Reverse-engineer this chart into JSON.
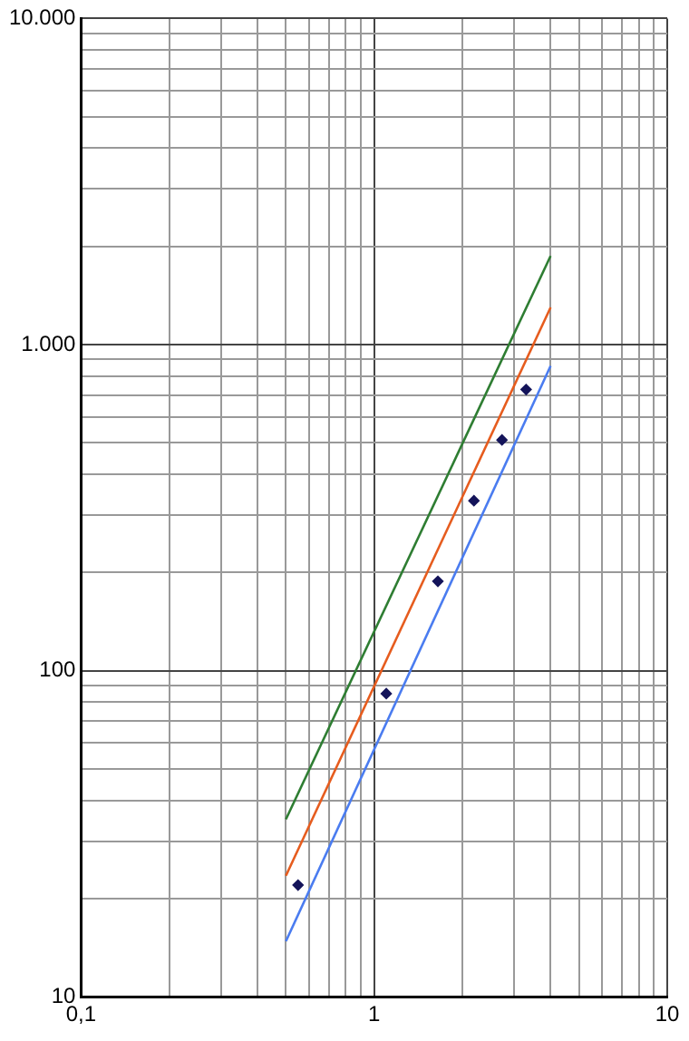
{
  "chart_data": {
    "type": "scatter",
    "log": "xy",
    "grid": true,
    "legend": false,
    "xlim": [
      0.1,
      10
    ],
    "ylim": [
      10,
      10000
    ],
    "xticks": [
      {
        "value": 0.1,
        "label": "0,1"
      },
      {
        "value": 0.2,
        "label": null
      },
      {
        "value": 0.3,
        "label": null
      },
      {
        "value": 0.4,
        "label": null
      },
      {
        "value": 0.5,
        "label": null
      },
      {
        "value": 0.6,
        "label": null
      },
      {
        "value": 0.7,
        "label": null
      },
      {
        "value": 0.8,
        "label": null
      },
      {
        "value": 0.9,
        "label": null
      },
      1,
      {
        "value": 2,
        "label": null
      },
      {
        "value": 3,
        "label": null
      },
      {
        "value": 4,
        "label": null
      },
      {
        "value": 5,
        "label": null
      },
      {
        "value": 6,
        "label": null
      },
      {
        "value": 7,
        "label": null
      },
      {
        "value": 8,
        "label": null
      },
      {
        "value": 9,
        "label": null
      },
      10
    ],
    "yticks": [
      10,
      {
        "value": 20,
        "label": null
      },
      {
        "value": 30,
        "label": null
      },
      {
        "value": 40,
        "label": null
      },
      {
        "value": 50,
        "label": null
      },
      {
        "value": 60,
        "label": null
      },
      {
        "value": 70,
        "label": null
      },
      {
        "value": 80,
        "label": null
      },
      {
        "value": 90,
        "label": null
      },
      100,
      {
        "value": 200,
        "label": null
      },
      {
        "value": 300,
        "label": null
      },
      {
        "value": 400,
        "label": null
      },
      {
        "value": 500,
        "label": null
      },
      {
        "value": 600,
        "label": null
      },
      {
        "value": 700,
        "label": null
      },
      {
        "value": 800,
        "label": null
      },
      {
        "value": 900,
        "label": null
      },
      {
        "value": 1000,
        "label": "1.000"
      },
      {
        "value": 2000,
        "label": null
      },
      {
        "value": 3000,
        "label": null
      },
      {
        "value": 4000,
        "label": null
      },
      {
        "value": 5000,
        "label": null
      },
      {
        "value": 6000,
        "label": null
      },
      {
        "value": 7000,
        "label": null
      },
      {
        "value": 8000,
        "label": null
      },
      {
        "value": 9000,
        "label": null
      },
      {
        "value": 10000,
        "label": "10.000"
      }
    ],
    "series": [
      {
        "type": "line",
        "color": "#2e7d32",
        "x": [
          0.5,
          4
        ],
        "values": [
          35,
          1870
        ],
        "marker": "none"
      },
      {
        "type": "line",
        "color": "#e65c1e",
        "x": [
          0.5,
          4
        ],
        "values": [
          23.5,
          1300
        ],
        "marker": "none"
      },
      {
        "type": "line",
        "color": "#4a7cf0",
        "x": [
          0.5,
          4
        ],
        "values": [
          14.8,
          860
        ],
        "marker": "none"
      },
      {
        "type": "scatter",
        "color": "#14145a",
        "x": [
          0.55,
          1.1,
          1.65,
          2.19,
          2.73,
          3.3
        ],
        "values": [
          22,
          85,
          188,
          332,
          510,
          728
        ],
        "marker": "diamond"
      }
    ]
  }
}
